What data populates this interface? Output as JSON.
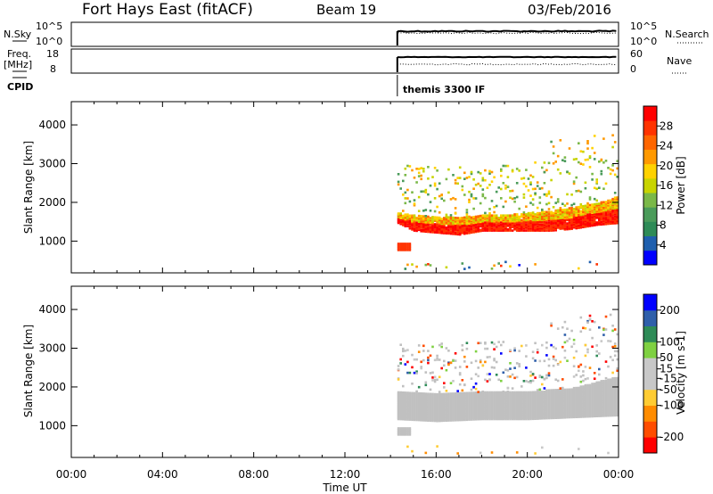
{
  "header": {
    "site": "Fort Hays East (fitACF)",
    "beam": "Beam 19",
    "date": "03/Feb/2016"
  },
  "summary_panels": {
    "nsky": {
      "left_label": "N.Sky",
      "left_ticks": [
        "10^5",
        "10^0"
      ],
      "right_label": "N.Search",
      "right_ticks": [
        "10^5",
        "10^0"
      ]
    },
    "freq": {
      "left_label_line1": "Freq.",
      "left_label_line2": "[MHz]",
      "left_ticks": [
        "18",
        "8"
      ],
      "right_label": "Nave",
      "right_ticks": [
        "60",
        "0"
      ]
    },
    "cpid": {
      "label": "CPID",
      "program_text": "themis 3300 IF",
      "program_start_hour": 14.3
    }
  },
  "colors": {
    "power_scale": [
      "#0000ff",
      "#1f5fae",
      "#2e8b57",
      "#4a9b5a",
      "#7ab848",
      "#c8d400",
      "#ffd200",
      "#ff9900",
      "#ff6600",
      "#ff3300",
      "#ff0000"
    ],
    "velocity_scale": [
      "#ff0000",
      "#ff4d00",
      "#ff8c00",
      "#ffcc33",
      "#c8c8c8",
      "#c8c8c8",
      "#7fd142",
      "#2e8b57",
      "#2f5faa",
      "#0000ff"
    ],
    "ground_scatter": "#c0c0c0"
  },
  "chart_data": [
    {
      "type": "heatmap",
      "name": "power-panel",
      "ylabel": "Slant Range [km]",
      "yticks": [
        "1000",
        "2000",
        "3000",
        "4000"
      ],
      "ylim": [
        180,
        4600
      ],
      "xlim": [
        0,
        24
      ],
      "colorbar_label": "Power [dB]",
      "colorbar_ticks": [
        "4",
        "8",
        "12",
        "16",
        "20",
        "24",
        "28"
      ],
      "colorbar_range": [
        0,
        32
      ],
      "data_start_hour": 14.3,
      "main_band_km": [
        [
          14.3,
          1500,
          1750
        ],
        [
          15.0,
          1300,
          1700
        ],
        [
          16.0,
          1250,
          1650
        ],
        [
          17.0,
          1200,
          1650
        ],
        [
          18.0,
          1300,
          1700
        ],
        [
          19.0,
          1300,
          1700
        ],
        [
          20.0,
          1300,
          1750
        ],
        [
          21.0,
          1300,
          1800
        ],
        [
          22.0,
          1350,
          1900
        ],
        [
          23.0,
          1450,
          2000
        ],
        [
          24.0,
          1500,
          2200
        ]
      ]
    },
    {
      "type": "heatmap",
      "name": "velocity-panel",
      "ylabel": "Slant Range [km]",
      "yticks": [
        "1000",
        "2000",
        "3000",
        "4000"
      ],
      "ylim": [
        180,
        4600
      ],
      "xlim": [
        0,
        24
      ],
      "colorbar_label": "Velocity [m s-1]",
      "colorbar_ticks": [
        "-200",
        "-100",
        "-50",
        "-15",
        "15",
        "50",
        "100",
        "200"
      ],
      "colorbar_range": [
        -250,
        250
      ],
      "data_start_hour": 14.3,
      "ground_band_km": [
        [
          14.3,
          1200,
          1900
        ],
        [
          16.0,
          1150,
          1850
        ],
        [
          18.0,
          1200,
          1900
        ],
        [
          20.0,
          1200,
          1900
        ],
        [
          22.0,
          1250,
          2000
        ],
        [
          24.0,
          1300,
          2300
        ]
      ]
    }
  ],
  "time_axis": {
    "label": "Time UT",
    "ticks": [
      "00:00",
      "04:00",
      "08:00",
      "12:00",
      "16:00",
      "20:00",
      "00:00"
    ]
  }
}
